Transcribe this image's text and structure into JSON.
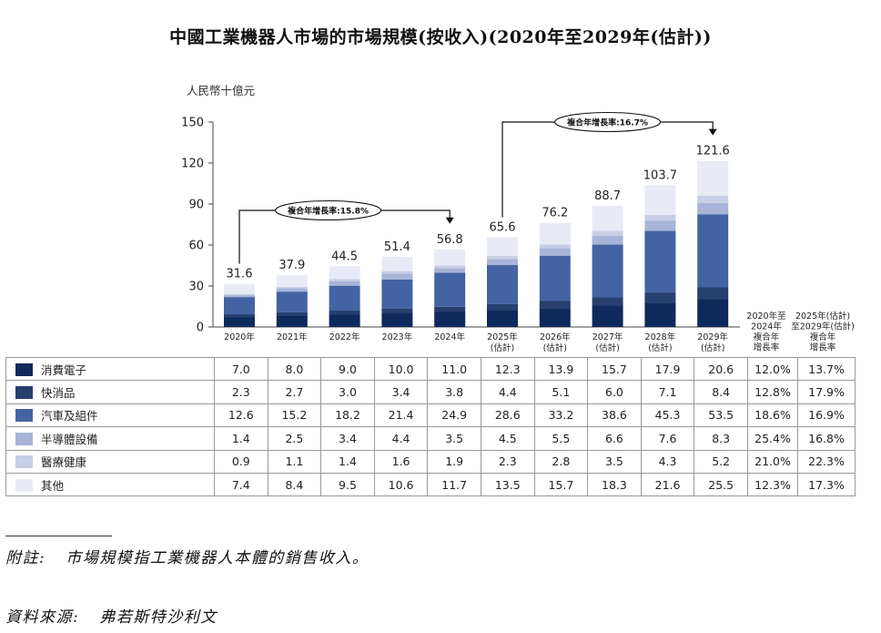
{
  "title": "中國工業機器人市場的市場規模(按收入)(2020年至2029年(估計))",
  "chart_data": {
    "type": "bar",
    "stacked": true,
    "title": "中國工業機器人市場的市場規模(按收入)(2020年至2029年(估計))",
    "ylabel": "人民幣十億元",
    "ylim": [
      0,
      150
    ],
    "yticks": [
      "0",
      "30",
      "60",
      "90",
      "120",
      "150"
    ],
    "ytick_values": [
      0,
      30,
      60,
      90,
      120,
      150
    ],
    "categories": [
      {
        "year": "2020年",
        "sub": ""
      },
      {
        "year": "2021年",
        "sub": ""
      },
      {
        "year": "2022年",
        "sub": ""
      },
      {
        "year": "2023年",
        "sub": ""
      },
      {
        "year": "2024年",
        "sub": ""
      },
      {
        "year": "2025年",
        "sub": "(估計)"
      },
      {
        "year": "2026年",
        "sub": "(估計)"
      },
      {
        "year": "2027年",
        "sub": "(估計)"
      },
      {
        "year": "2028年",
        "sub": "(估計)"
      },
      {
        "year": "2029年",
        "sub": "(估計)"
      }
    ],
    "totals": [
      31.6,
      37.9,
      44.5,
      51.4,
      56.8,
      65.6,
      76.2,
      88.7,
      103.7,
      121.6
    ],
    "total_labels": [
      "31.6",
      "37.9",
      "44.5",
      "51.4",
      "56.8",
      "65.6",
      "76.2",
      "88.7",
      "103.7",
      "121.6"
    ],
    "series": [
      {
        "name": "消費電子",
        "color": "#0e2a5c",
        "values": [
          7.0,
          8.0,
          9.0,
          10.0,
          11.0,
          12.3,
          13.9,
          15.7,
          17.9,
          20.6
        ],
        "labels": [
          "7.0",
          "8.0",
          "9.0",
          "10.0",
          "11.0",
          "12.3",
          "13.9",
          "15.7",
          "17.9",
          "20.6"
        ],
        "cagr_2020_2024": "12.0%",
        "cagr_2025_2029": "13.7%"
      },
      {
        "name": "快消品",
        "color": "#263f6e",
        "values": [
          2.3,
          2.7,
          3.0,
          3.4,
          3.8,
          4.4,
          5.1,
          6.0,
          7.1,
          8.4
        ],
        "labels": [
          "2.3",
          "2.7",
          "3.0",
          "3.4",
          "3.8",
          "4.4",
          "5.1",
          "6.0",
          "7.1",
          "8.4"
        ],
        "cagr_2020_2024": "12.8%",
        "cagr_2025_2029": "17.9%"
      },
      {
        "name": "汽車及組件",
        "color": "#4463a2",
        "values": [
          12.6,
          15.2,
          18.2,
          21.4,
          24.9,
          28.6,
          33.2,
          38.6,
          45.3,
          53.5
        ],
        "labels": [
          "12.6",
          "15.2",
          "18.2",
          "21.4",
          "24.9",
          "28.6",
          "33.2",
          "38.6",
          "45.3",
          "53.5"
        ],
        "cagr_2020_2024": "18.6%",
        "cagr_2025_2029": "16.9%"
      },
      {
        "name": "半導體設備",
        "color": "#a8b4d8",
        "values": [
          1.4,
          2.5,
          3.4,
          4.4,
          3.5,
          4.5,
          5.5,
          6.6,
          7.6,
          8.3
        ],
        "labels": [
          "1.4",
          "2.5",
          "3.4",
          "4.4",
          "3.5",
          "4.5",
          "5.5",
          "6.6",
          "7.6",
          "8.3"
        ],
        "cagr_2020_2024": "25.4%",
        "cagr_2025_2029": "16.8%"
      },
      {
        "name": "醫療健康",
        "color": "#c8cfe6",
        "values": [
          0.9,
          1.1,
          1.4,
          1.6,
          1.9,
          2.3,
          2.8,
          3.5,
          4.3,
          5.2
        ],
        "labels": [
          "0.9",
          "1.1",
          "1.4",
          "1.6",
          "1.9",
          "2.3",
          "2.8",
          "3.5",
          "4.3",
          "5.2"
        ],
        "cagr_2020_2024": "21.0%",
        "cagr_2025_2029": "22.3%"
      },
      {
        "name": "其他",
        "color": "#e8ebf5",
        "values": [
          7.4,
          8.4,
          9.5,
          10.6,
          11.7,
          13.5,
          15.7,
          18.3,
          21.6,
          25.5
        ],
        "labels": [
          "7.4",
          "8.4",
          "9.5",
          "10.6",
          "11.7",
          "13.5",
          "15.7",
          "18.3",
          "21.6",
          "25.5"
        ],
        "cagr_2020_2024": "12.3%",
        "cagr_2025_2029": "17.3%"
      }
    ],
    "cagr_header_1": [
      "2020年至",
      "2024年",
      "複合年",
      "增長率"
    ],
    "cagr_header_2": [
      "2025年(估計)",
      "至2029年(估計)",
      "複合年",
      "增長率"
    ],
    "annotations": [
      {
        "text": "複合年增長率:15.8%",
        "from": "2020年",
        "to": "2024年"
      },
      {
        "text": "複合年增長率:16.7%",
        "from": "2025年",
        "to": "2029年"
      }
    ]
  },
  "notes": {
    "note_label": "附註:",
    "note_text": "市場規模指工業機器人本體的銷售收入。",
    "source_label": "資料來源:",
    "source_text": "弗若斯特沙利文"
  }
}
